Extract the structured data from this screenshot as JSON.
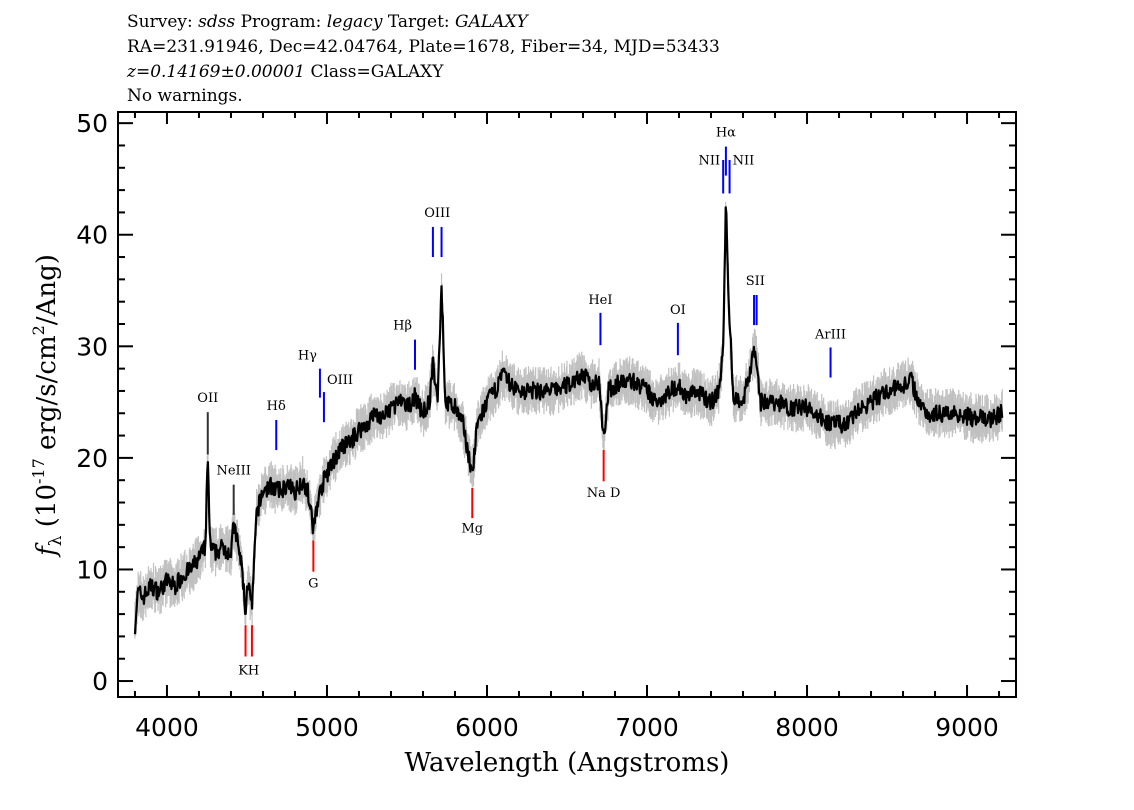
{
  "header": {
    "survey_label": "Survey: ",
    "survey": "sdss",
    "program_label": " Program: ",
    "program": "legacy",
    "target_label": " Target: ",
    "target": "GALAXY",
    "line2": "RA=231.91946, Dec=42.04764, Plate=1678, Fiber=34, MJD=53433",
    "redshift": "z=0.14169±0.00001",
    "class": " Class=GALAXY",
    "warnings": "No warnings."
  },
  "chart_data": {
    "type": "line",
    "xlabel": "Wavelength (Angstroms)",
    "ylabel": {
      "f": "f",
      "sub": "λ",
      "a": " (10",
      "exp": "-17",
      "b": " erg/s/cm",
      "exp2": "2",
      "c": "/Ang)"
    },
    "xlim": [
      3694,
      9306
    ],
    "ylim": [
      -1.43,
      51
    ],
    "xticks": [
      4000,
      5000,
      6000,
      7000,
      8000,
      9000
    ],
    "xtick_labels": [
      "4000",
      "5000",
      "6000",
      "7000",
      "8000",
      "9000"
    ],
    "yticks": [
      0,
      10,
      20,
      30,
      40,
      50
    ],
    "ytick_labels": [
      "0",
      "10",
      "20",
      "30",
      "40",
      "50"
    ],
    "x_minor_step": 200,
    "y_minor_step": 2,
    "grid": false,
    "colors": {
      "flux": "#000000",
      "error": "#c0c0c0",
      "emission": "#0000ff",
      "absorption": "#ff0000"
    },
    "error_band": 1.5,
    "spectrum": [
      [
        3800,
        5
      ],
      [
        3820,
        8
      ],
      [
        3850,
        7.5
      ],
      [
        3900,
        8.5
      ],
      [
        3950,
        8
      ],
      [
        4000,
        9
      ],
      [
        4050,
        8.5
      ],
      [
        4100,
        9.5
      ],
      [
        4150,
        10
      ],
      [
        4200,
        11
      ],
      [
        4240,
        12
      ],
      [
        4255,
        20
      ],
      [
        4270,
        12
      ],
      [
        4300,
        11.5
      ],
      [
        4350,
        12
      ],
      [
        4400,
        11.5
      ],
      [
        4417,
        14
      ],
      [
        4440,
        12.5
      ],
      [
        4470,
        10
      ],
      [
        4491,
        6
      ],
      [
        4505,
        9
      ],
      [
        4531,
        6.5
      ],
      [
        4560,
        15
      ],
      [
        4600,
        17
      ],
      [
        4650,
        17.5
      ],
      [
        4700,
        17
      ],
      [
        4750,
        17.5
      ],
      [
        4800,
        17
      ],
      [
        4850,
        18
      ],
      [
        4880,
        17
      ],
      [
        4915,
        13.5
      ],
      [
        4940,
        16
      ],
      [
        4981,
        18
      ],
      [
        5050,
        20
      ],
      [
        5100,
        21
      ],
      [
        5150,
        21.5
      ],
      [
        5200,
        22.5
      ],
      [
        5250,
        23
      ],
      [
        5300,
        24
      ],
      [
        5350,
        23.5
      ],
      [
        5400,
        24.5
      ],
      [
        5450,
        25
      ],
      [
        5500,
        24.5
      ],
      [
        5550,
        25.5
      ],
      [
        5600,
        24
      ],
      [
        5640,
        25
      ],
      [
        5662,
        28.5
      ],
      [
        5690,
        25
      ],
      [
        5716,
        35.5
      ],
      [
        5740,
        25
      ],
      [
        5800,
        24.5
      ],
      [
        5850,
        23
      ],
      [
        5908,
        18.5
      ],
      [
        5940,
        23
      ],
      [
        6000,
        25
      ],
      [
        6050,
        26
      ],
      [
        6100,
        27.5
      ],
      [
        6150,
        26.5
      ],
      [
        6200,
        26
      ],
      [
        6300,
        26
      ],
      [
        6400,
        26
      ],
      [
        6500,
        26.5
      ],
      [
        6600,
        27.5
      ],
      [
        6650,
        26.5
      ],
      [
        6700,
        27
      ],
      [
        6729,
        22
      ],
      [
        6760,
        26
      ],
      [
        6800,
        26.5
      ],
      [
        6900,
        27
      ],
      [
        7000,
        26
      ],
      [
        7050,
        25
      ],
      [
        7100,
        25.5
      ],
      [
        7193,
        26.5
      ],
      [
        7250,
        25.5
      ],
      [
        7300,
        26
      ],
      [
        7400,
        25
      ],
      [
        7450,
        26
      ],
      [
        7476,
        30
      ],
      [
        7493,
        42.5
      ],
      [
        7516,
        32
      ],
      [
        7540,
        25.5
      ],
      [
        7600,
        25
      ],
      [
        7669,
        29.5
      ],
      [
        7685,
        29
      ],
      [
        7710,
        25
      ],
      [
        7800,
        25
      ],
      [
        7900,
        24.5
      ],
      [
        8000,
        24.5
      ],
      [
        8100,
        23.5
      ],
      [
        8150,
        23
      ],
      [
        8250,
        23
      ],
      [
        8300,
        24
      ],
      [
        8400,
        25
      ],
      [
        8500,
        26
      ],
      [
        8600,
        26.5
      ],
      [
        8650,
        27
      ],
      [
        8700,
        25
      ],
      [
        8750,
        24
      ],
      [
        8850,
        24
      ],
      [
        8950,
        24
      ],
      [
        9050,
        23.5
      ],
      [
        9150,
        23.5
      ],
      [
        9220,
        24
      ]
    ],
    "lines": [
      {
        "name": "OII",
        "wave": [
          4255
        ],
        "type": "emission",
        "color": "#333333",
        "y": [
          20.3,
          24.1
        ],
        "label_y": 25.0,
        "align": "middle"
      },
      {
        "name": "NeIII",
        "wave": [
          4417
        ],
        "type": "emission",
        "color": "#333333",
        "y": [
          14.9,
          17.6
        ],
        "label_y": 18.5,
        "align": "middle"
      },
      {
        "name": "KH",
        "wave": [
          4491,
          4531
        ],
        "type": "absorption",
        "color": "#ff0000",
        "y": [
          2.2,
          5.0
        ],
        "label_y": 0.6,
        "align": "middle"
      },
      {
        "name": "Hδ",
        "wave": [
          4683
        ],
        "type": "emission",
        "color": "#0000ff",
        "y": [
          20.7,
          23.4
        ],
        "label_y": 24.3,
        "align": "middle"
      },
      {
        "name": "G",
        "wave": [
          4915
        ],
        "type": "absorption",
        "color": "#ff0000",
        "y": [
          9.8,
          12.6
        ],
        "label_y": 8.4,
        "align": "middle"
      },
      {
        "name": "Hγ",
        "wave": [
          4956
        ],
        "type": "emission",
        "color": "#0000ff",
        "y": [
          25.4,
          28.0
        ],
        "label_y": 28.8,
        "align": "end"
      },
      {
        "name": "OIII",
        "wave": [
          4981
        ],
        "type": "emission",
        "color": "#0000ff",
        "y": [
          23.2,
          25.9
        ],
        "label_y": 26.6,
        "align": "start"
      },
      {
        "name": "Hβ",
        "wave": [
          5550
        ],
        "type": "emission",
        "color": "#0000ff",
        "y": [
          27.9,
          30.6
        ],
        "label_y": 31.5,
        "align": "end"
      },
      {
        "name": "OIII",
        "wave": [
          5662,
          5716
        ],
        "type": "emission",
        "color": "#0000ff",
        "y": [
          38.0,
          40.7
        ],
        "label_y": 41.6,
        "align": "middle"
      },
      {
        "name": "Mg",
        "wave": [
          5908
        ],
        "type": "absorption",
        "color": "#ff0000",
        "y": [
          14.6,
          17.3
        ],
        "label_y": 13.3,
        "align": "middle"
      },
      {
        "name": "HeI",
        "wave": [
          6709
        ],
        "type": "emission",
        "color": "#0000ff",
        "y": [
          30.1,
          33.0
        ],
        "label_y": 33.8,
        "align": "middle"
      },
      {
        "name": "Na D",
        "wave": [
          6729
        ],
        "type": "absorption",
        "color": "#ff0000",
        "y": [
          17.9,
          20.7
        ],
        "label_y": 16.5,
        "align": "middle"
      },
      {
        "name": "OI",
        "wave": [
          7193
        ],
        "type": "emission",
        "color": "#0000ff",
        "y": [
          29.2,
          32.1
        ],
        "label_y": 32.9,
        "align": "middle"
      },
      {
        "name": "NII",
        "wave": [
          7476
        ],
        "type": "emission",
        "color": "#0000ff",
        "y": [
          43.7,
          46.7
        ],
        "label_y": 46.3,
        "align": "end"
      },
      {
        "name": "Hα",
        "wave": [
          7493
        ],
        "type": "emission",
        "color": "#0000ff",
        "y": [
          45.3,
          47.9
        ],
        "label_y": 48.8,
        "align": "middle"
      },
      {
        "name": "NII",
        "wave": [
          7516
        ],
        "type": "emission",
        "color": "#0000ff",
        "y": [
          43.7,
          46.7
        ],
        "label_y": 46.3,
        "align": "start"
      },
      {
        "name": "SII",
        "wave": [
          7669,
          7685
        ],
        "type": "emission",
        "color": "#0000ff",
        "y": [
          31.9,
          34.6
        ],
        "label_y": 35.5,
        "align": "middle"
      },
      {
        "name": "ArIII",
        "wave": [
          8147
        ],
        "type": "emission",
        "color": "#0000ff",
        "y": [
          27.2,
          29.9
        ],
        "label_y": 30.7,
        "align": "middle"
      }
    ]
  }
}
